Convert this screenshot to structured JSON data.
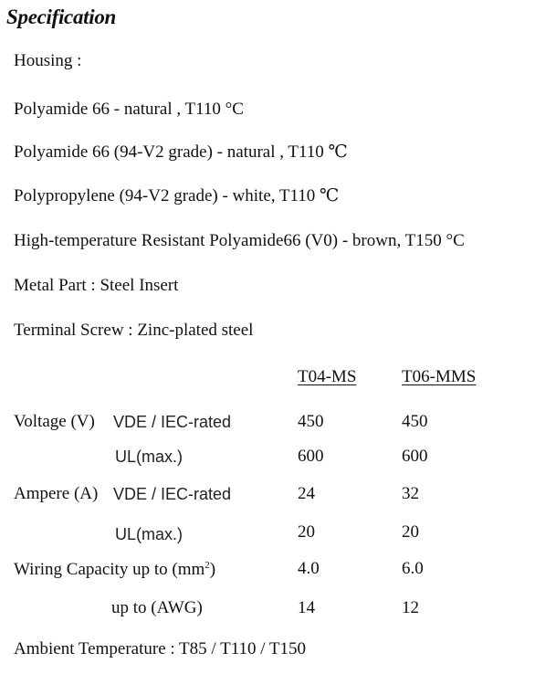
{
  "title": "Specification",
  "housing": {
    "heading": "Housing :",
    "materials": [
      "Polyamide 66  - natural , T110 °C",
      "Polyamide 66 (94-V2 grade) - natural , T110 ℃",
      "Polypropylene  (94-V2 grade) - white, T110 ℃",
      "High-temperature Resistant Polyamide66 (V0) - brown,  T150 °C"
    ]
  },
  "metal_part": "Metal Part : Steel Insert",
  "terminal_screw": "Terminal Screw : Zinc-plated steel",
  "table": {
    "columns": [
      "T04-MS",
      "T06-MMS"
    ],
    "voltage": {
      "label": "Voltage (V)",
      "rows": [
        {
          "sub": "VDE / IEC-rated",
          "values": [
            "450",
            "450"
          ]
        },
        {
          "sub": "UL(max.)",
          "values": [
            "600",
            "600"
          ]
        }
      ]
    },
    "ampere": {
      "label": "Ampere (A)",
      "rows": [
        {
          "sub": "VDE / IEC-rated",
          "values": [
            "24",
            "32"
          ]
        },
        {
          "sub": "UL(max.)",
          "values": [
            "20",
            "20"
          ]
        }
      ]
    },
    "wiring": {
      "label_prefix": "Wiring Capacity up to (mm",
      "label_sup": "2",
      "label_suffix": ")",
      "values_mm2": [
        "4.0",
        "6.0"
      ],
      "awg_label": "up to (AWG)",
      "values_awg": [
        "14",
        "12"
      ]
    }
  },
  "ambient_temperature": "Ambient Temperature : T85 / T110 / T150"
}
